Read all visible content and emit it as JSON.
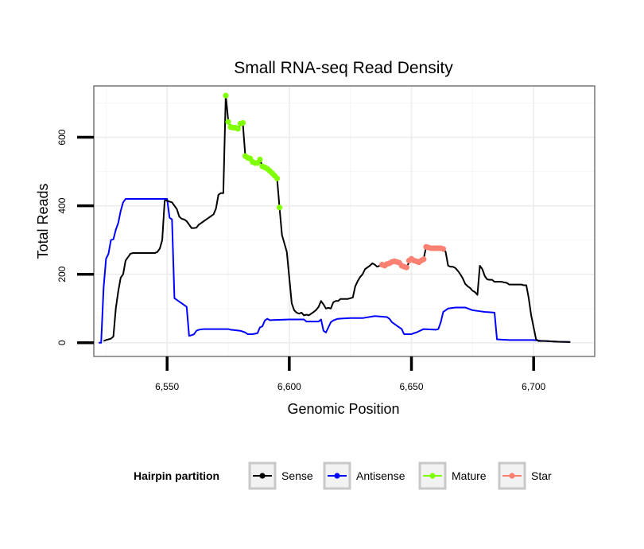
{
  "chart_data": {
    "type": "line",
    "title": "Small RNA-seq Read Density",
    "xlabel": "Genomic Position",
    "ylabel": "Total Reads",
    "xlim": [
      6520,
      6725
    ],
    "ylim": [
      -40,
      750
    ],
    "x_ticks": [
      {
        "value": 6550,
        "label": "6,550"
      },
      {
        "value": 6600,
        "label": "6,600"
      },
      {
        "value": 6650,
        "label": "6,650"
      },
      {
        "value": 6700,
        "label": "6,700"
      }
    ],
    "y_ticks": [
      {
        "value": 0,
        "label": "0"
      },
      {
        "value": 200,
        "label": "200"
      },
      {
        "value": 400,
        "label": "400"
      },
      {
        "value": 600,
        "label": "600"
      }
    ],
    "grid": true,
    "legend": {
      "title": "Hairpin partition",
      "position": "bottom",
      "entries": [
        "Sense",
        "Antisense",
        "Mature",
        "Star"
      ]
    },
    "series": [
      {
        "name": "Sense",
        "color": "#000000",
        "style": "line",
        "points": [
          [
            6524,
            5
          ],
          [
            6525,
            8
          ],
          [
            6526,
            10
          ],
          [
            6527,
            12
          ],
          [
            6528,
            18
          ],
          [
            6529,
            100
          ],
          [
            6530,
            150
          ],
          [
            6531,
            190
          ],
          [
            6532,
            200
          ],
          [
            6533,
            240
          ],
          [
            6534,
            250
          ],
          [
            6535,
            260
          ],
          [
            6536,
            262
          ],
          [
            6537,
            262
          ],
          [
            6538,
            262
          ],
          [
            6539,
            262
          ],
          [
            6540,
            262
          ],
          [
            6541,
            262
          ],
          [
            6542,
            262
          ],
          [
            6543,
            262
          ],
          [
            6544,
            262
          ],
          [
            6545,
            262
          ],
          [
            6546,
            265
          ],
          [
            6547,
            275
          ],
          [
            6548,
            300
          ],
          [
            6549,
            415
          ],
          [
            6550,
            415
          ],
          [
            6551,
            412
          ],
          [
            6552,
            410
          ],
          [
            6553,
            400
          ],
          [
            6554,
            390
          ],
          [
            6555,
            368
          ],
          [
            6556,
            362
          ],
          [
            6557,
            360
          ],
          [
            6558,
            355
          ],
          [
            6559,
            345
          ],
          [
            6560,
            335
          ],
          [
            6561,
            335
          ],
          [
            6562,
            336
          ],
          [
            6563,
            345
          ],
          [
            6564,
            350
          ],
          [
            6565,
            355
          ],
          [
            6566,
            360
          ],
          [
            6567,
            365
          ],
          [
            6568,
            370
          ],
          [
            6569,
            375
          ],
          [
            6570,
            392
          ],
          [
            6571,
            432
          ],
          [
            6572,
            437
          ],
          [
            6573,
            437
          ],
          [
            6574,
            722
          ],
          [
            6575,
            650
          ],
          [
            6576,
            628
          ],
          [
            6577,
            625
          ],
          [
            6578,
            625
          ],
          [
            6579,
            625
          ],
          [
            6580,
            638
          ],
          [
            6581,
            640
          ],
          [
            6582,
            545
          ],
          [
            6583,
            540
          ],
          [
            6584,
            540
          ],
          [
            6585,
            528
          ],
          [
            6586,
            525
          ],
          [
            6587,
            525
          ],
          [
            6588,
            535
          ],
          [
            6589,
            515
          ],
          [
            6590,
            512
          ],
          [
            6591,
            510
          ],
          [
            6592,
            505
          ],
          [
            6593,
            498
          ],
          [
            6594,
            490
          ],
          [
            6595,
            480
          ],
          [
            6596,
            395
          ],
          [
            6597,
            315
          ],
          [
            6598,
            290
          ],
          [
            6599,
            265
          ],
          [
            6600,
            190
          ],
          [
            6601,
            115
          ],
          [
            6602,
            95
          ],
          [
            6603,
            88
          ],
          [
            6604,
            85
          ],
          [
            6605,
            88
          ],
          [
            6606,
            80
          ],
          [
            6607,
            82
          ],
          [
            6608,
            80
          ],
          [
            6609,
            85
          ],
          [
            6610,
            90
          ],
          [
            6611,
            96
          ],
          [
            6612,
            105
          ],
          [
            6613,
            122
          ],
          [
            6614,
            112
          ],
          [
            6615,
            100
          ],
          [
            6616,
            102
          ],
          [
            6617,
            100
          ],
          [
            6618,
            118
          ],
          [
            6619,
            122
          ],
          [
            6620,
            122
          ],
          [
            6621,
            128
          ],
          [
            6622,
            128
          ],
          [
            6623,
            128
          ],
          [
            6624,
            128
          ],
          [
            6625,
            130
          ],
          [
            6626,
            132
          ],
          [
            6627,
            165
          ],
          [
            6628,
            180
          ],
          [
            6629,
            192
          ],
          [
            6630,
            200
          ],
          [
            6631,
            215
          ],
          [
            6632,
            220
          ],
          [
            6633,
            225
          ],
          [
            6634,
            232
          ],
          [
            6635,
            228
          ],
          [
            6636,
            222
          ],
          [
            6637,
            225
          ],
          [
            6638,
            228
          ],
          [
            6639,
            222
          ],
          [
            6640,
            225
          ],
          [
            6641,
            232
          ],
          [
            6642,
            235
          ],
          [
            6643,
            238
          ],
          [
            6644,
            235
          ],
          [
            6645,
            232
          ],
          [
            6646,
            228
          ],
          [
            6647,
            222
          ],
          [
            6648,
            220
          ],
          [
            6649,
            235
          ],
          [
            6650,
            245
          ],
          [
            6651,
            240
          ],
          [
            6652,
            238
          ],
          [
            6653,
            235
          ],
          [
            6654,
            240
          ],
          [
            6655,
            245
          ],
          [
            6656,
            280
          ],
          [
            6657,
            278
          ],
          [
            6658,
            275
          ],
          [
            6659,
            275
          ],
          [
            6660,
            275
          ],
          [
            6661,
            275
          ],
          [
            6662,
            275
          ],
          [
            6663,
            275
          ],
          [
            6664,
            265
          ],
          [
            6665,
            225
          ],
          [
            6666,
            222
          ],
          [
            6667,
            222
          ],
          [
            6668,
            218
          ],
          [
            6669,
            210
          ],
          [
            6670,
            200
          ],
          [
            6671,
            188
          ],
          [
            6672,
            172
          ],
          [
            6673,
            165
          ],
          [
            6674,
            160
          ],
          [
            6675,
            152
          ],
          [
            6676,
            148
          ],
          [
            6677,
            140
          ],
          [
            6678,
            225
          ],
          [
            6679,
            215
          ],
          [
            6680,
            195
          ],
          [
            6681,
            185
          ],
          [
            6682,
            184
          ],
          [
            6683,
            184
          ],
          [
            6684,
            178
          ],
          [
            6685,
            178
          ],
          [
            6686,
            178
          ],
          [
            6687,
            178
          ],
          [
            6688,
            176
          ],
          [
            6689,
            175
          ],
          [
            6690,
            170
          ],
          [
            6691,
            170
          ],
          [
            6692,
            170
          ],
          [
            6693,
            170
          ],
          [
            6694,
            170
          ],
          [
            6695,
            170
          ],
          [
            6696,
            168
          ],
          [
            6697,
            168
          ],
          [
            6698,
            130
          ],
          [
            6699,
            80
          ],
          [
            6700,
            45
          ],
          [
            6701,
            10
          ],
          [
            6702,
            5
          ],
          [
            6703,
            5
          ],
          [
            6704,
            5
          ],
          [
            6705,
            5
          ],
          [
            6710,
            3
          ],
          [
            6715,
            2
          ]
        ]
      },
      {
        "name": "Antisense",
        "color": "#0000ff",
        "style": "line",
        "points": [
          [
            6522,
            0
          ],
          [
            6523,
            0
          ],
          [
            6524,
            160
          ],
          [
            6525,
            245
          ],
          [
            6526,
            260
          ],
          [
            6527,
            300
          ],
          [
            6528,
            302
          ],
          [
            6529,
            330
          ],
          [
            6530,
            350
          ],
          [
            6531,
            385
          ],
          [
            6532,
            410
          ],
          [
            6533,
            420
          ],
          [
            6550,
            420
          ],
          [
            6551,
            365
          ],
          [
            6552,
            360
          ],
          [
            6553,
            130
          ],
          [
            6557,
            110
          ],
          [
            6558,
            105
          ],
          [
            6559,
            20
          ],
          [
            6560,
            22
          ],
          [
            6561,
            25
          ],
          [
            6562,
            35
          ],
          [
            6563,
            38
          ],
          [
            6565,
            40
          ],
          [
            6570,
            40
          ],
          [
            6575,
            40
          ],
          [
            6576,
            38
          ],
          [
            6580,
            35
          ],
          [
            6582,
            30
          ],
          [
            6583,
            25
          ],
          [
            6585,
            25
          ],
          [
            6587,
            28
          ],
          [
            6588,
            45
          ],
          [
            6589,
            48
          ],
          [
            6590,
            65
          ],
          [
            6591,
            70
          ],
          [
            6592,
            66
          ],
          [
            6600,
            68
          ],
          [
            6606,
            68
          ],
          [
            6607,
            62
          ],
          [
            6612,
            62
          ],
          [
            6613,
            68
          ],
          [
            6614,
            35
          ],
          [
            6615,
            30
          ],
          [
            6616,
            45
          ],
          [
            6617,
            60
          ],
          [
            6618,
            65
          ],
          [
            6619,
            68
          ],
          [
            6620,
            70
          ],
          [
            6625,
            72
          ],
          [
            6630,
            72
          ],
          [
            6635,
            78
          ],
          [
            6640,
            75
          ],
          [
            6641,
            70
          ],
          [
            6642,
            60
          ],
          [
            6645,
            45
          ],
          [
            6646,
            40
          ],
          [
            6647,
            25
          ],
          [
            6650,
            25
          ],
          [
            6651,
            28
          ],
          [
            6652,
            30
          ],
          [
            6655,
            40
          ],
          [
            6660,
            38
          ],
          [
            6661,
            40
          ],
          [
            6662,
            60
          ],
          [
            6663,
            90
          ],
          [
            6665,
            100
          ],
          [
            6668,
            103
          ],
          [
            6672,
            103
          ],
          [
            6675,
            95
          ],
          [
            6678,
            92
          ],
          [
            6680,
            90
          ],
          [
            6684,
            88
          ],
          [
            6685,
            10
          ],
          [
            6690,
            8
          ],
          [
            6700,
            8
          ],
          [
            6703,
            6
          ],
          [
            6705,
            5
          ],
          [
            6710,
            3
          ],
          [
            6715,
            2
          ]
        ]
      },
      {
        "name": "Mature",
        "color": "#7fff00",
        "style": "points",
        "points": [
          [
            6574,
            722
          ],
          [
            6575,
            645
          ],
          [
            6576,
            630
          ],
          [
            6577,
            628
          ],
          [
            6578,
            628
          ],
          [
            6579,
            625
          ],
          [
            6580,
            640
          ],
          [
            6581,
            642
          ],
          [
            6582,
            545
          ],
          [
            6583,
            540
          ],
          [
            6584,
            538
          ],
          [
            6585,
            528
          ],
          [
            6586,
            525
          ],
          [
            6587,
            525
          ],
          [
            6588,
            535
          ],
          [
            6589,
            515
          ],
          [
            6590,
            512
          ],
          [
            6591,
            508
          ],
          [
            6592,
            502
          ],
          [
            6593,
            495
          ],
          [
            6594,
            488
          ],
          [
            6595,
            480
          ],
          [
            6596,
            395
          ]
        ]
      },
      {
        "name": "Star",
        "color": "#fa8072",
        "style": "points",
        "points": [
          [
            6638,
            228
          ],
          [
            6639,
            225
          ],
          [
            6640,
            230
          ],
          [
            6641,
            232
          ],
          [
            6642,
            236
          ],
          [
            6643,
            238
          ],
          [
            6644,
            236
          ],
          [
            6645,
            234
          ],
          [
            6646,
            225
          ],
          [
            6647,
            222
          ],
          [
            6648,
            220
          ],
          [
            6649,
            240
          ],
          [
            6650,
            245
          ],
          [
            6651,
            240
          ],
          [
            6652,
            238
          ],
          [
            6653,
            235
          ],
          [
            6654,
            240
          ],
          [
            6655,
            244
          ],
          [
            6656,
            280
          ],
          [
            6657,
            278
          ],
          [
            6658,
            276
          ],
          [
            6659,
            276
          ],
          [
            6660,
            276
          ],
          [
            6661,
            276
          ],
          [
            6662,
            276
          ],
          [
            6663,
            274
          ]
        ]
      }
    ]
  }
}
